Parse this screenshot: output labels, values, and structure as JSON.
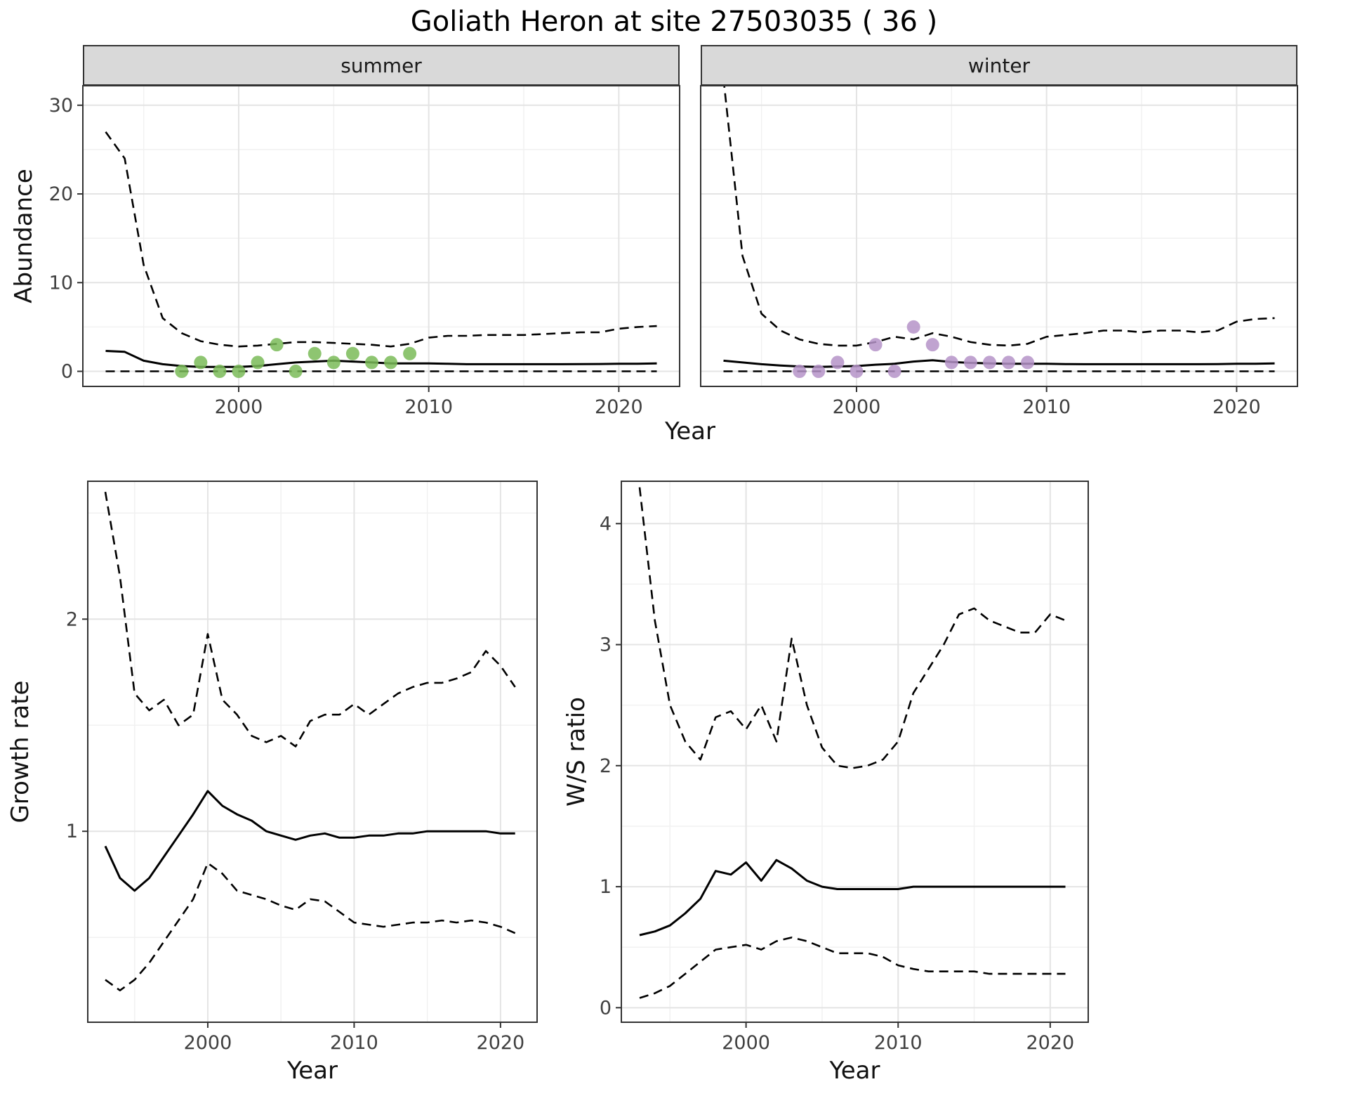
{
  "title": "Goliath Heron at site 27503035 ( 36 )",
  "colors": {
    "summer_points": "#7abb58",
    "winter_points": "#b593c8",
    "line": "#000000",
    "grid_major": "#e4e4e4",
    "grid_minor": "#f1f1f1",
    "strip_bg": "#d9d9d9",
    "panel_border": "#333333",
    "axis_text": "#404040"
  },
  "chart_data": [
    {
      "type": "line",
      "id": "abundance",
      "xlabel": "Year",
      "ylabel": "Abundance",
      "xlim": [
        1991.8,
        2023.2
      ],
      "ylim": [
        -1.7,
        32.2
      ],
      "xticks": [
        2000,
        2010,
        2020
      ],
      "yticks": [
        0,
        10,
        20,
        30
      ],
      "grid": true,
      "years": [
        1993,
        1994,
        1995,
        1996,
        1997,
        1998,
        1999,
        2000,
        2001,
        2002,
        2003,
        2004,
        2005,
        2006,
        2007,
        2008,
        2009,
        2010,
        2011,
        2012,
        2013,
        2014,
        2015,
        2016,
        2017,
        2018,
        2019,
        2020,
        2021,
        2022
      ],
      "facets": [
        {
          "label": "summer",
          "point_color": "#7abb58",
          "series": [
            {
              "name": "upper_ci",
              "style": "dashed",
              "y": [
                27,
                24,
                12,
                6,
                4.3,
                3.4,
                3.0,
                2.8,
                2.9,
                3.1,
                3.3,
                3.3,
                3.2,
                3.1,
                3.0,
                2.8,
                3.1,
                3.8,
                4.0,
                4.0,
                4.1,
                4.1,
                4.1,
                4.2,
                4.3,
                4.4,
                4.4,
                4.8,
                5.0,
                5.1
              ]
            },
            {
              "name": "fit",
              "style": "solid",
              "y": [
                2.3,
                2.2,
                1.2,
                0.8,
                0.6,
                0.5,
                0.5,
                0.5,
                0.6,
                0.8,
                1.0,
                1.1,
                1.2,
                1.1,
                1.0,
                0.9,
                0.9,
                0.9,
                0.85,
                0.8,
                0.8,
                0.8,
                0.8,
                0.8,
                0.8,
                0.82,
                0.83,
                0.85,
                0.85,
                0.9
              ]
            },
            {
              "name": "lower_ci",
              "style": "dashed",
              "y": [
                0,
                0,
                0,
                0,
                0,
                0,
                0,
                0,
                0,
                0,
                0,
                0,
                0,
                0,
                0,
                0,
                0,
                0,
                0,
                0,
                0,
                0,
                0,
                0,
                0,
                0,
                0,
                0,
                0,
                0
              ]
            },
            {
              "name": "observations",
              "style": "points",
              "x": [
                1997,
                1998,
                1999,
                2000,
                2001,
                2002,
                2003,
                2004,
                2005,
                2006,
                2007,
                2008,
                2009
              ],
              "y": [
                0,
                1,
                0,
                0,
                1,
                3,
                0,
                2,
                1,
                2,
                1,
                1,
                2
              ]
            }
          ]
        },
        {
          "label": "winter",
          "point_color": "#b593c8",
          "series": [
            {
              "name": "upper_ci",
              "style": "dashed",
              "y": [
                33,
                13,
                6.5,
                4.6,
                3.6,
                3.1,
                2.9,
                2.9,
                3.3,
                3.9,
                3.6,
                4.3,
                3.9,
                3.3,
                3.0,
                2.9,
                3.1,
                3.9,
                4.1,
                4.3,
                4.6,
                4.6,
                4.4,
                4.6,
                4.6,
                4.4,
                4.6,
                5.6,
                5.9,
                6.0
              ]
            },
            {
              "name": "fit",
              "style": "solid",
              "y": [
                1.2,
                1.0,
                0.8,
                0.65,
                0.55,
                0.5,
                0.55,
                0.6,
                0.75,
                0.85,
                1.1,
                1.25,
                1.05,
                0.95,
                0.9,
                0.85,
                0.85,
                0.85,
                0.82,
                0.8,
                0.8,
                0.8,
                0.8,
                0.8,
                0.8,
                0.8,
                0.82,
                0.85,
                0.85,
                0.9
              ]
            },
            {
              "name": "lower_ci",
              "style": "dashed",
              "y": [
                0,
                0,
                0,
                0,
                0,
                0,
                0,
                0,
                0,
                0,
                0,
                0,
                0,
                0,
                0,
                0,
                0,
                0,
                0,
                0,
                0,
                0,
                0,
                0,
                0,
                0,
                0,
                0,
                0,
                0
              ]
            },
            {
              "name": "observations",
              "style": "points",
              "x": [
                1997,
                1998,
                1999,
                2000,
                2001,
                2002,
                2003,
                2004,
                2005,
                2006,
                2007,
                2008,
                2009
              ],
              "y": [
                0,
                0,
                1,
                0,
                3,
                0,
                5,
                3,
                1,
                1,
                1,
                1,
                1
              ]
            }
          ]
        }
      ]
    },
    {
      "type": "line",
      "id": "growth_rate",
      "xlabel": "Year",
      "ylabel": "Growth rate",
      "xlim": [
        1991.8,
        2022.5
      ],
      "ylim": [
        0.1,
        2.65
      ],
      "xticks": [
        2000,
        2010,
        2020
      ],
      "yticks": [
        1,
        2
      ],
      "grid": true,
      "years": [
        1993,
        1994,
        1995,
        1996,
        1997,
        1998,
        1999,
        2000,
        2001,
        2002,
        2003,
        2004,
        2005,
        2006,
        2007,
        2008,
        2009,
        2010,
        2011,
        2012,
        2013,
        2014,
        2015,
        2016,
        2017,
        2018,
        2019,
        2020,
        2021
      ],
      "series": [
        {
          "name": "upper_ci",
          "style": "dashed",
          "y": [
            2.6,
            2.2,
            1.65,
            1.57,
            1.62,
            1.5,
            1.55,
            1.93,
            1.62,
            1.55,
            1.45,
            1.42,
            1.45,
            1.4,
            1.52,
            1.55,
            1.55,
            1.6,
            1.55,
            1.6,
            1.65,
            1.68,
            1.7,
            1.7,
            1.72,
            1.75,
            1.85,
            1.78,
            1.68
          ]
        },
        {
          "name": "fit",
          "style": "solid",
          "y": [
            0.93,
            0.78,
            0.72,
            0.78,
            0.88,
            0.98,
            1.08,
            1.19,
            1.12,
            1.08,
            1.05,
            1.0,
            0.98,
            0.96,
            0.98,
            0.99,
            0.97,
            0.97,
            0.98,
            0.98,
            0.99,
            0.99,
            1.0,
            1.0,
            1.0,
            1.0,
            1.0,
            0.99,
            0.99
          ]
        },
        {
          "name": "lower_ci",
          "style": "dashed",
          "y": [
            0.3,
            0.25,
            0.3,
            0.38,
            0.48,
            0.58,
            0.68,
            0.85,
            0.8,
            0.72,
            0.7,
            0.68,
            0.65,
            0.63,
            0.68,
            0.67,
            0.62,
            0.57,
            0.56,
            0.55,
            0.56,
            0.57,
            0.57,
            0.58,
            0.57,
            0.58,
            0.57,
            0.55,
            0.52
          ]
        }
      ]
    },
    {
      "type": "line",
      "id": "ws_ratio",
      "xlabel": "Year",
      "ylabel": "W/S ratio",
      "xlim": [
        1991.8,
        2022.5
      ],
      "ylim": [
        -0.12,
        4.35
      ],
      "xticks": [
        2000,
        2010,
        2020
      ],
      "yticks": [
        0,
        1,
        2,
        3,
        4
      ],
      "grid": true,
      "years": [
        1993,
        1994,
        1995,
        1996,
        1997,
        1998,
        1999,
        2000,
        2001,
        2002,
        2003,
        2004,
        2005,
        2006,
        2007,
        2008,
        2009,
        2010,
        2011,
        2012,
        2013,
        2014,
        2015,
        2016,
        2017,
        2018,
        2019,
        2020,
        2021
      ],
      "series": [
        {
          "name": "upper_ci",
          "style": "dashed",
          "y": [
            4.3,
            3.2,
            2.5,
            2.2,
            2.05,
            2.4,
            2.45,
            2.3,
            2.5,
            2.2,
            3.05,
            2.5,
            2.15,
            2.0,
            1.98,
            2.0,
            2.05,
            2.2,
            2.6,
            2.8,
            3.0,
            3.25,
            3.3,
            3.2,
            3.15,
            3.1,
            3.1,
            3.25,
            3.2
          ]
        },
        {
          "name": "fit",
          "style": "solid",
          "y": [
            0.6,
            0.63,
            0.68,
            0.78,
            0.9,
            1.13,
            1.1,
            1.2,
            1.05,
            1.22,
            1.15,
            1.05,
            1.0,
            0.98,
            0.98,
            0.98,
            0.98,
            0.98,
            1.0,
            1.0,
            1.0,
            1.0,
            1.0,
            1.0,
            1.0,
            1.0,
            1.0,
            1.0,
            1.0
          ]
        },
        {
          "name": "lower_ci",
          "style": "dashed",
          "y": [
            0.08,
            0.12,
            0.18,
            0.28,
            0.38,
            0.48,
            0.5,
            0.52,
            0.48,
            0.55,
            0.58,
            0.55,
            0.5,
            0.45,
            0.45,
            0.45,
            0.42,
            0.35,
            0.32,
            0.3,
            0.3,
            0.3,
            0.3,
            0.28,
            0.28,
            0.28,
            0.28,
            0.28,
            0.28
          ]
        }
      ]
    }
  ]
}
